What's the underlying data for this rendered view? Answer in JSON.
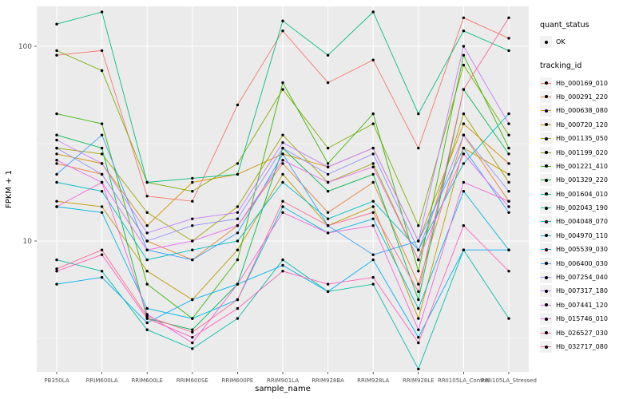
{
  "colors": {
    "panel_bg": "#EBEBEB",
    "grid": "#FFFFFF",
    "point": "#000000",
    "tick_text": "#4D4D4D",
    "axis_title_text": "#000000"
  },
  "chart_data": {
    "type": "line",
    "title": "",
    "xlabel": "sample_name",
    "ylabel": "FPKM + 1",
    "y_scale": "log10",
    "y_ticks": [
      10,
      100
    ],
    "y_minor_ticks": [
      3.1623,
      31.623
    ],
    "ylim": [
      2.1,
      160
    ],
    "grid": true,
    "legend_position": "right",
    "categories": [
      "PB350LA",
      "RRIM600LA",
      "RRIM600LE",
      "RRIM600SE",
      "RRIM600PE",
      "RRIM901LA",
      "RRIM928BA",
      "RRIM928LA",
      "RRIM928LE",
      "RRII105LA_Control",
      "RRII105LA_Stressed"
    ],
    "series": [
      {
        "name": "Hb_000169_010",
        "color": "#F8766D",
        "values": [
          90,
          95,
          17,
          16,
          50,
          120,
          65,
          85,
          30,
          140,
          110
        ]
      },
      {
        "name": "Hb_000291_220",
        "color": "#EA8331",
        "values": [
          25,
          22,
          10,
          8,
          12,
          25,
          14,
          20,
          6,
          35,
          16
        ]
      },
      {
        "name": "Hb_000638_080",
        "color": "#D89000",
        "values": [
          28,
          25,
          12,
          20,
          22,
          28,
          24,
          30,
          10,
          40,
          25
        ]
      },
      {
        "name": "Hb_000720_120",
        "color": "#C09B00",
        "values": [
          16,
          15,
          7,
          5,
          9,
          22,
          12,
          15,
          4,
          30,
          22
        ]
      },
      {
        "name": "Hb_001135_050",
        "color": "#A3A500",
        "values": [
          30,
          28,
          14,
          10,
          15,
          35,
          20,
          25,
          8,
          45,
          20
        ]
      },
      {
        "name": "Hb_001199_020",
        "color": "#7CAE00",
        "values": [
          95,
          75,
          20,
          18,
          25,
          60,
          30,
          40,
          12,
          80,
          35
        ]
      },
      {
        "name": "Hb_001221_410",
        "color": "#39B600",
        "values": [
          45,
          40,
          6,
          4,
          8,
          65,
          25,
          45,
          7,
          90,
          30
        ]
      },
      {
        "name": "Hb_001329_220",
        "color": "#00BB4E",
        "values": [
          35,
          30,
          4,
          3.5,
          6,
          30,
          18,
          22,
          5,
          60,
          28
        ]
      },
      {
        "name": "Hb_001604_010",
        "color": "#00BF7D",
        "values": [
          130,
          150,
          20,
          21,
          22,
          135,
          90,
          150,
          45,
          120,
          95
        ]
      },
      {
        "name": "Hb_002043_190",
        "color": "#00C1A3",
        "values": [
          8,
          7,
          3.5,
          2.8,
          4,
          8,
          5.5,
          6,
          2.2,
          9,
          4
        ]
      },
      {
        "name": "Hb_004048_070",
        "color": "#00BFC4",
        "values": [
          20,
          18,
          8,
          9,
          10,
          20,
          13,
          16,
          9,
          25,
          45
        ]
      },
      {
        "name": "Hb_004970_110",
        "color": "#00BAE0",
        "values": [
          15,
          14,
          4.5,
          4,
          5,
          15,
          11,
          13,
          4.5,
          18,
          9
        ]
      },
      {
        "name": "Hb_005539_030",
        "color": "#00B0F6",
        "values": [
          6,
          6.5,
          3.8,
          5,
          6,
          7.5,
          5.5,
          8,
          3.2,
          9,
          9
        ]
      },
      {
        "name": "Hb_006400_030",
        "color": "#35A2FF",
        "values": [
          22,
          35,
          9,
          8,
          11,
          28,
          12,
          8.5,
          10,
          30,
          14
        ]
      },
      {
        "name": "Hb_007254_040",
        "color": "#9590FF",
        "values": [
          30,
          22,
          10,
          12,
          13,
          30,
          22,
          28,
          9,
          35,
          18
        ]
      },
      {
        "name": "Hb_007317_180",
        "color": "#C77CFF",
        "values": [
          33,
          25,
          11,
          13,
          14,
          32,
          24,
          30,
          10,
          100,
          40
        ]
      },
      {
        "name": "Hb_007441_120",
        "color": "#E76BF3",
        "values": [
          26,
          20,
          9,
          10,
          12,
          26,
          20,
          24,
          8,
          28,
          15
        ]
      },
      {
        "name": "Hb_015746_010",
        "color": "#FA62DB",
        "values": [
          15,
          20,
          4.2,
          3,
          6,
          14,
          11,
          12,
          3.5,
          20,
          16
        ]
      },
      {
        "name": "Hb_026527_030",
        "color": "#FF62BC",
        "values": [
          7,
          8.5,
          4,
          3.2,
          4.5,
          7,
          6,
          6.5,
          3,
          12,
          7
        ]
      },
      {
        "name": "Hb_032717_080",
        "color": "#FF6A98",
        "values": [
          7.2,
          9,
          4.1,
          3.4,
          5,
          16,
          12,
          14,
          5.5,
          60,
          140
        ]
      }
    ],
    "legend": {
      "quant_status_title": "quant_status",
      "quant_status_items": [
        {
          "label": "OK"
        }
      ],
      "tracking_id_title": "tracking_id"
    }
  }
}
